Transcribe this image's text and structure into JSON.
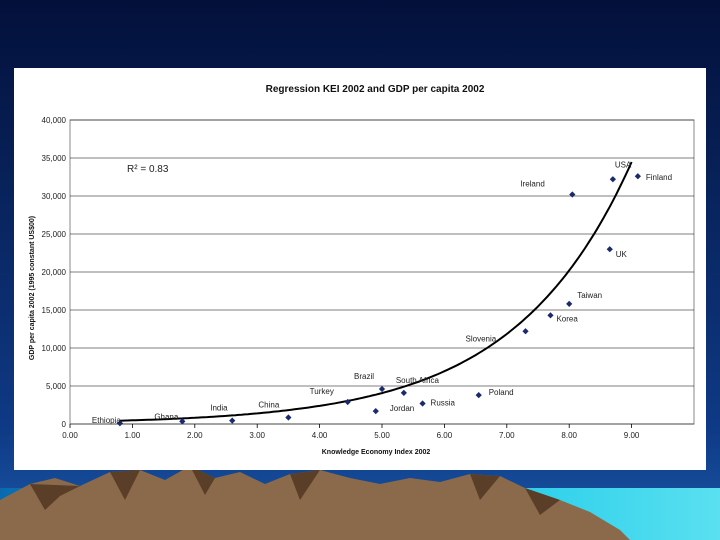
{
  "colors": {
    "background_top": "#03103a",
    "background_mid": "#0f3a86",
    "mountain": "#8a6a4a",
    "mountain_dark": "#5a3e28",
    "water": "#18c8e8",
    "point": "#1a2a6e",
    "curve": "#000000",
    "plot_area": "#ffffff",
    "gridline": "#000000"
  },
  "chart_data": {
    "type": "scatter",
    "title": "Regression KEI 2002 and GDP per capita 2002",
    "xlabel": "Knowledge Economy Index 2002",
    "ylabel": "GDP per capita 2002 (1995 constant US$00)",
    "xlim": [
      0,
      10
    ],
    "ylim": [
      0,
      40000
    ],
    "x_tick_labels": [
      "0.00",
      "1.00",
      "2.00",
      "3.00",
      "4.00",
      "5.00",
      "6.00",
      "7.00",
      "8.00",
      "9.00"
    ],
    "y_tick_labels": [
      "0",
      "5,000",
      "10,000",
      "15,000",
      "20,000",
      "25,000",
      "30,000",
      "35,000",
      "40,000"
    ],
    "y_ticks": [
      0,
      5000,
      10000,
      15000,
      20000,
      25000,
      30000,
      35000,
      40000
    ],
    "r_squared_label": "R² = 0.83",
    "grid": "horizontal",
    "points": [
      {
        "label": "Ethiopia",
        "x": 0.8,
        "y": 100
      },
      {
        "label": "Ghana",
        "x": 1.8,
        "y": 350
      },
      {
        "label": "India",
        "x": 2.6,
        "y": 450
      },
      {
        "label": "China",
        "x": 3.5,
        "y": 850
      },
      {
        "label": "Turkey",
        "x": 4.45,
        "y": 2900
      },
      {
        "label": "Jordan",
        "x": 4.9,
        "y": 1700
      },
      {
        "label": "Brazil",
        "x": 5.0,
        "y": 4600
      },
      {
        "label": "South Africa",
        "x": 5.35,
        "y": 4100
      },
      {
        "label": "Russia",
        "x": 5.65,
        "y": 2700
      },
      {
        "label": "Poland",
        "x": 6.55,
        "y": 3800
      },
      {
        "label": "Slovenia",
        "x": 7.3,
        "y": 12200
      },
      {
        "label": "Korea",
        "x": 7.7,
        "y": 14300
      },
      {
        "label": "Taiwan",
        "x": 8.0,
        "y": 15800
      },
      {
        "label": "Ireland",
        "x": 8.05,
        "y": 30200
      },
      {
        "label": "USA",
        "x": 8.7,
        "y": 32200
      },
      {
        "label": "UK",
        "x": 8.65,
        "y": 23000
      },
      {
        "label": "Finland",
        "x": 9.1,
        "y": 32600
      }
    ],
    "trendline": {
      "type": "exponential",
      "a": 282,
      "b": 0.534,
      "x_start": 0.8,
      "x_end": 9.0
    }
  }
}
